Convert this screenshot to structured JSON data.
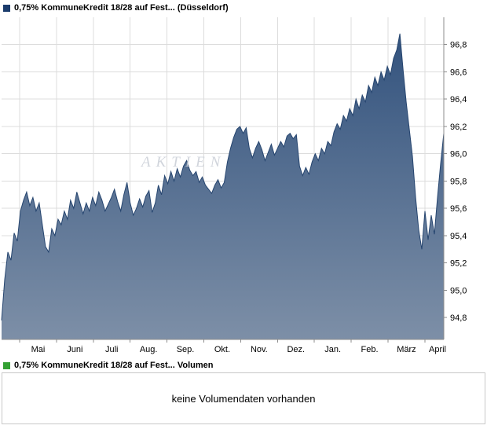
{
  "price_panel": {
    "title": "0,75% KommuneKredit 18/28 auf Fest... (Düsseldorf)",
    "swatch_color": "#1b3c6c"
  },
  "volume_panel": {
    "title": "0,75% KommuneKredit 18/28 auf Fest... Volumen",
    "message": "keine Volumendaten vorhanden",
    "swatch_color": "#34a134"
  },
  "chart_data": {
    "type": "area",
    "title": "0,75% KommuneKredit 18/28 auf Fest... (Düsseldorf)",
    "watermark": "AKTIEN",
    "grid": true,
    "legend": "none",
    "line_color": "#26456f",
    "fill_top": "#33537e",
    "fill_bottom": "#7d8fa7",
    "ylim": [
      94.64,
      97.0
    ],
    "x_labels": [
      "Mai",
      "Juni",
      "Juli",
      "Aug.",
      "Sep.",
      "Okt.",
      "Nov.",
      "Dez.",
      "Jan.",
      "Feb.",
      "März",
      "April"
    ],
    "y_ticks": [
      {
        "value": 96.8,
        "label": "96,8"
      },
      {
        "value": 96.6,
        "label": "96,6"
      },
      {
        "value": 96.4,
        "label": "96,4"
      },
      {
        "value": 96.2,
        "label": "96,2"
      },
      {
        "value": 96.0,
        "label": "96,0"
      },
      {
        "value": 95.8,
        "label": "95,8"
      },
      {
        "value": 95.6,
        "label": "95,6"
      },
      {
        "value": 95.4,
        "label": "95,4"
      },
      {
        "value": 95.2,
        "label": "95,2"
      },
      {
        "value": 95.0,
        "label": "95,0"
      },
      {
        "value": 94.8,
        "label": "94,8"
      }
    ],
    "values": [
      94.78,
      95.08,
      95.28,
      95.22,
      95.42,
      95.36,
      95.58,
      95.66,
      95.72,
      95.62,
      95.68,
      95.58,
      95.64,
      95.48,
      95.32,
      95.28,
      95.45,
      95.4,
      95.52,
      95.48,
      95.58,
      95.52,
      95.66,
      95.6,
      95.72,
      95.64,
      95.56,
      95.64,
      95.58,
      95.68,
      95.62,
      95.72,
      95.66,
      95.58,
      95.63,
      95.68,
      95.74,
      95.65,
      95.58,
      95.7,
      95.79,
      95.64,
      95.55,
      95.6,
      95.67,
      95.61,
      95.69,
      95.73,
      95.57,
      95.64,
      95.77,
      95.7,
      95.84,
      95.78,
      95.87,
      95.8,
      95.89,
      95.83,
      95.91,
      95.95,
      95.88,
      95.84,
      95.87,
      95.79,
      95.83,
      95.77,
      95.74,
      95.71,
      95.77,
      95.81,
      95.75,
      95.79,
      95.94,
      96.04,
      96.12,
      96.18,
      96.2,
      96.15,
      96.19,
      96.04,
      95.97,
      96.04,
      96.09,
      96.03,
      95.95,
      96.01,
      96.07,
      95.99,
      96.04,
      96.09,
      96.05,
      96.13,
      96.15,
      96.11,
      96.14,
      95.91,
      95.84,
      95.9,
      95.85,
      95.94,
      96.0,
      95.95,
      96.04,
      96.0,
      96.09,
      96.06,
      96.16,
      96.22,
      96.18,
      96.28,
      96.24,
      96.33,
      96.28,
      96.4,
      96.33,
      96.43,
      96.38,
      96.5,
      96.45,
      96.56,
      96.5,
      96.6,
      96.54,
      96.64,
      96.58,
      96.7,
      96.76,
      96.88,
      96.62,
      96.38,
      96.18,
      95.98,
      95.68,
      95.44,
      95.3,
      95.58,
      95.37,
      95.55,
      95.41,
      95.68,
      95.93,
      96.15
    ]
  }
}
